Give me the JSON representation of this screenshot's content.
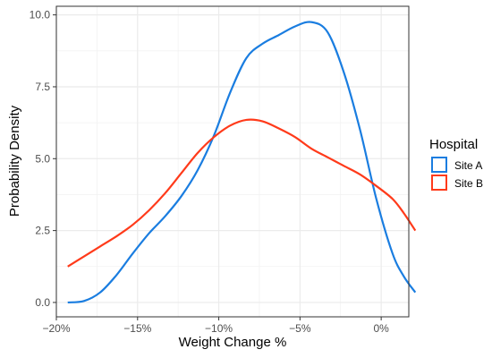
{
  "chart_data": {
    "type": "line",
    "title": "",
    "xlabel": "Weight Change %",
    "ylabel": "Probability Density",
    "xlim": [
      -20,
      1.7
    ],
    "ylim": [
      -0.5,
      10.3
    ],
    "xticks": [
      {
        "value": -20,
        "label": "−20%"
      },
      {
        "value": -15,
        "label": "−15%"
      },
      {
        "value": -10,
        "label": "−10%"
      },
      {
        "value": -5,
        "label": "−5%"
      },
      {
        "value": 0,
        "label": "0%"
      }
    ],
    "yticks": [
      {
        "value": 0,
        "label": "0.0"
      },
      {
        "value": 2.5,
        "label": "2.5"
      },
      {
        "value": 5,
        "label": "5.0"
      },
      {
        "value": 7.5,
        "label": "7.5"
      },
      {
        "value": 10,
        "label": "10.0"
      }
    ],
    "grid": true,
    "legend": {
      "title": "Hospital",
      "placement": "right"
    },
    "series": [
      {
        "name": "Site A",
        "color": "#1a7de0",
        "points": [
          [
            -19.3,
            0.0
          ],
          [
            -18.3,
            0.05
          ],
          [
            -17.3,
            0.35
          ],
          [
            -16.3,
            0.95
          ],
          [
            -15.3,
            1.7
          ],
          [
            -14.3,
            2.4
          ],
          [
            -13.3,
            3.0
          ],
          [
            -12.3,
            3.7
          ],
          [
            -11.3,
            4.6
          ],
          [
            -10.3,
            5.8
          ],
          [
            -9.3,
            7.3
          ],
          [
            -8.3,
            8.5
          ],
          [
            -7.3,
            9.0
          ],
          [
            -6.3,
            9.3
          ],
          [
            -5.3,
            9.6
          ],
          [
            -4.3,
            9.75
          ],
          [
            -3.3,
            9.4
          ],
          [
            -2.3,
            8.0
          ],
          [
            -1.3,
            6.0
          ],
          [
            -0.3,
            3.6
          ],
          [
            0.7,
            1.7
          ],
          [
            1.4,
            0.9
          ],
          [
            2.1,
            0.35
          ]
        ]
      },
      {
        "name": "Site B",
        "color": "#ff3a1a",
        "points": [
          [
            -19.3,
            1.25
          ],
          [
            -18.3,
            1.6
          ],
          [
            -17.3,
            1.95
          ],
          [
            -16.3,
            2.3
          ],
          [
            -15.3,
            2.7
          ],
          [
            -14.3,
            3.2
          ],
          [
            -13.3,
            3.8
          ],
          [
            -12.3,
            4.5
          ],
          [
            -11.3,
            5.2
          ],
          [
            -10.3,
            5.75
          ],
          [
            -9.3,
            6.15
          ],
          [
            -8.3,
            6.35
          ],
          [
            -7.3,
            6.3
          ],
          [
            -6.3,
            6.05
          ],
          [
            -5.3,
            5.75
          ],
          [
            -4.3,
            5.35
          ],
          [
            -3.3,
            5.05
          ],
          [
            -2.3,
            4.75
          ],
          [
            -1.3,
            4.45
          ],
          [
            -0.3,
            4.05
          ],
          [
            0.7,
            3.6
          ],
          [
            1.4,
            3.1
          ],
          [
            2.1,
            2.5
          ]
        ]
      }
    ]
  }
}
